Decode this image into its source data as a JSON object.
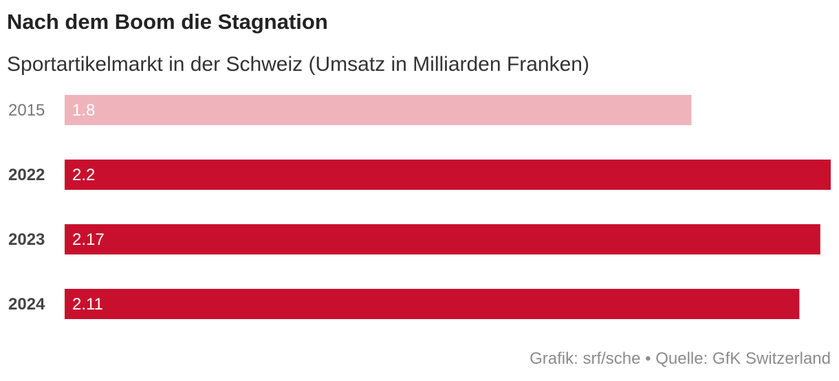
{
  "chart_data": {
    "type": "bar",
    "orientation": "horizontal",
    "title": "Nach dem Boom die Stagnation",
    "subtitle": "Sportartikelmarkt in der Schweiz (Umsatz in Milliarden Franken)",
    "categories": [
      "2015",
      "2022",
      "2023",
      "2024"
    ],
    "values": [
      1.8,
      2.2,
      2.17,
      2.11
    ],
    "value_labels": [
      "1.8",
      "2.2",
      "2.17",
      "2.11"
    ],
    "highlight": [
      false,
      true,
      true,
      true
    ],
    "xlim": [
      0,
      2.2
    ],
    "colors": {
      "highlight": "#c8102e",
      "muted": "#efb4bb",
      "label_highlight": "#444444",
      "label_muted": "#777777"
    }
  },
  "footer": {
    "source": "Grafik: srf/sche • Quelle: GfK Switzerland"
  }
}
